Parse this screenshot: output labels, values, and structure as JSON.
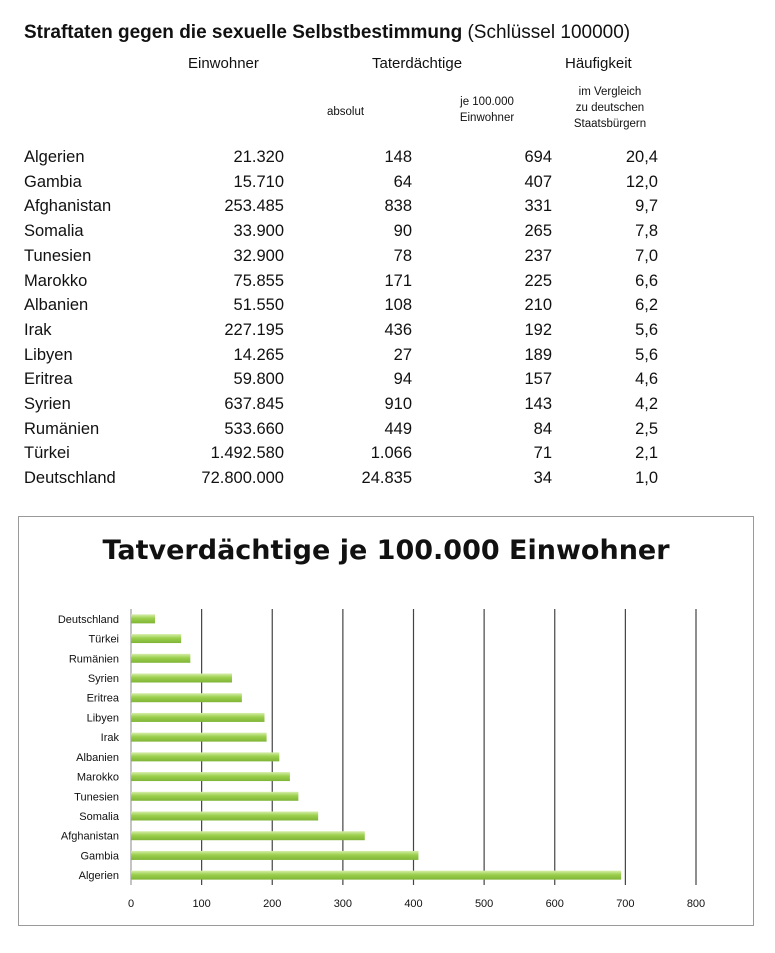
{
  "table": {
    "title_bold": "Straftaten gegen die sexuelle Selbstbestimmung",
    "title_key": "(Schlüssel 100000)",
    "headers": {
      "einwohner": "Einwohner",
      "tatverdaechtige": "Taterdächtige",
      "haeufigkeit": "Häufigkeit",
      "absolut": "absolut",
      "je_line1": "je 100.000",
      "je_line2": "Einwohner",
      "vgl_line1": "im Vergleich",
      "vgl_line2": "zu deutschen",
      "vgl_line3": "Staatsbürgern"
    },
    "rows": [
      [
        "Algerien",
        "21.320",
        "148",
        "694",
        "20,4"
      ],
      [
        "Gambia",
        "15.710",
        "64",
        "407",
        "12,0"
      ],
      [
        "Afghanistan",
        "253.485",
        "838",
        "331",
        "9,7"
      ],
      [
        "Somalia",
        "33.900",
        "90",
        "265",
        "7,8"
      ],
      [
        "Tunesien",
        "32.900",
        "78",
        "237",
        "7,0"
      ],
      [
        "Marokko",
        "75.855",
        "171",
        "225",
        "6,6"
      ],
      [
        "Albanien",
        "51.550",
        "108",
        "210",
        "6,2"
      ],
      [
        "Irak",
        "227.195",
        "436",
        "192",
        "5,6"
      ],
      [
        "Libyen",
        "14.265",
        "27",
        "189",
        "5,6"
      ],
      [
        "Eritrea",
        "59.800",
        "94",
        "157",
        "4,6"
      ],
      [
        "Syrien",
        "637.845",
        "910",
        "143",
        "4,2"
      ],
      [
        "Rumänien",
        "533.660",
        "449",
        "84",
        "2,5"
      ],
      [
        "Türkei",
        "1.492.580",
        "1.066",
        "71",
        "2,1"
      ],
      [
        "Deutschland",
        "72.800.000",
        "24.835",
        "34",
        "1,0"
      ]
    ]
  },
  "colors": {
    "bar": "#9bcf4c",
    "bar_light": "#d6eeaa",
    "grid": "#444444"
  },
  "chart_data": {
    "type": "bar",
    "orientation": "horizontal",
    "title": "Tatverdächtige je 100.000 Einwohner",
    "categories": [
      "Algerien",
      "Gambia",
      "Afghanistan",
      "Somalia",
      "Tunesien",
      "Marokko",
      "Albanien",
      "Irak",
      "Libyen",
      "Eritrea",
      "Syrien",
      "Rumänien",
      "Türkei",
      "Deutschland"
    ],
    "values": [
      694,
      407,
      331,
      265,
      237,
      225,
      210,
      192,
      189,
      157,
      143,
      84,
      71,
      34
    ],
    "xlim": [
      0,
      800
    ],
    "xticks": [
      0,
      100,
      200,
      300,
      400,
      500,
      600,
      700,
      800
    ],
    "grid": true,
    "legend": "none"
  }
}
